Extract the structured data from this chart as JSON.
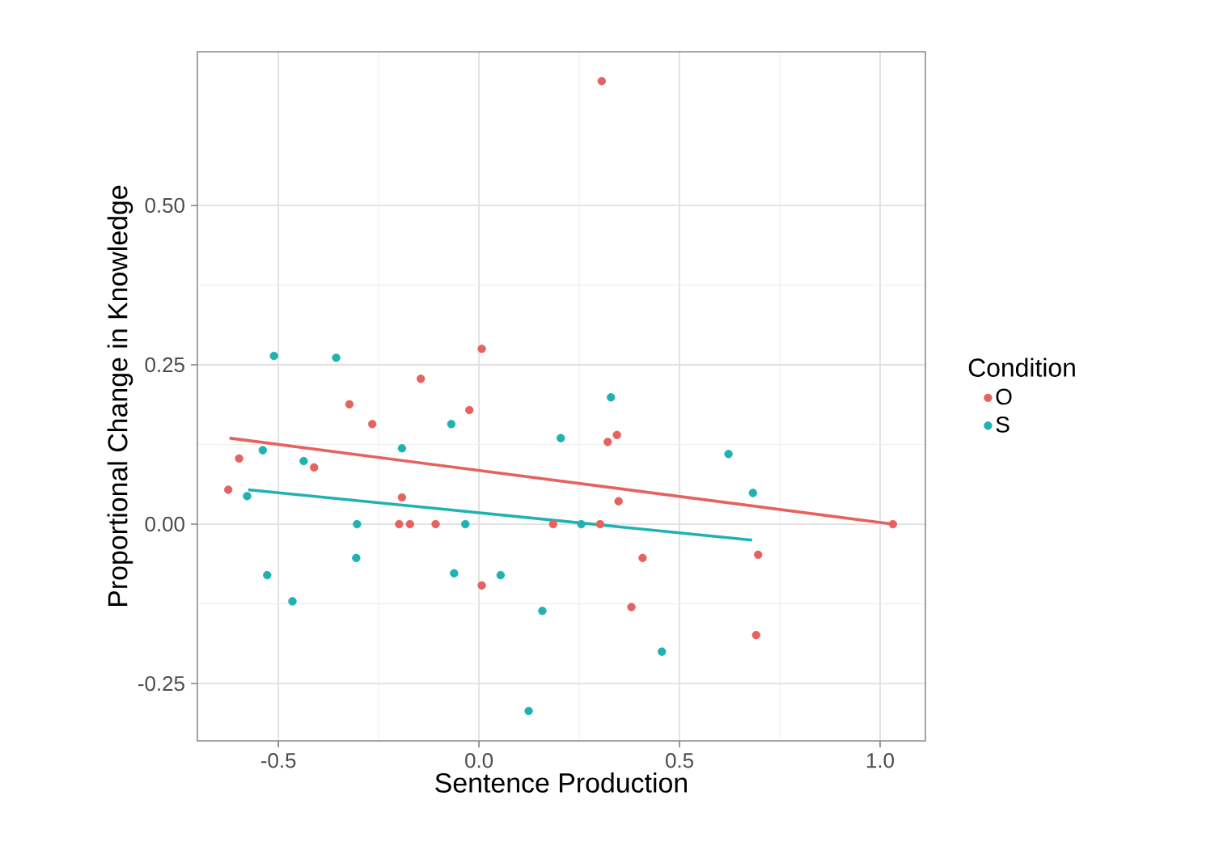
{
  "chart_data": {
    "type": "scatter",
    "xlabel": "Sentence Production",
    "ylabel": "Proportional Change in Knowledge",
    "legend_title": "Condition",
    "xlim": [
      -0.702,
      1.113
    ],
    "ylim": [
      -0.34,
      0.741
    ],
    "xticks": [
      {
        "value": -0.5,
        "label": "-0.5"
      },
      {
        "value": 0,
        "label": "0.0"
      },
      {
        "value": 0.5,
        "label": "0.5"
      },
      {
        "value": 1,
        "label": "1.0"
      }
    ],
    "yticks": [
      {
        "value": -0.25,
        "label": "-0.25"
      },
      {
        "value": 0,
        "label": "0.00"
      },
      {
        "value": 0.25,
        "label": "0.25"
      },
      {
        "value": 0.5,
        "label": "0.50"
      }
    ],
    "grid": true,
    "legend": "right",
    "series": [
      {
        "name": "O",
        "marker": "circle",
        "color": "#e5635f",
        "x": [
          -0.625,
          -0.598,
          -0.411,
          -0.323,
          -0.266,
          -0.145,
          -0.024,
          -0.192,
          -0.199,
          -0.172,
          -0.108,
          0.007,
          0.185,
          0.007,
          0.306,
          0.321,
          0.344,
          0.348,
          0.408,
          0.302,
          0.38,
          0.696,
          0.691,
          1.032
        ],
        "values": [
          0.054,
          0.103,
          0.089,
          0.188,
          0.157,
          0.228,
          0.179,
          0.042,
          0,
          0,
          0,
          -0.096,
          0,
          0.275,
          0.695,
          0.129,
          0.14,
          0.036,
          -0.053,
          0,
          -0.13,
          -0.048,
          -0.174,
          0
        ]
      },
      {
        "name": "S",
        "marker": "circle",
        "color": "#20b2b2",
        "x": [
          -0.511,
          -0.356,
          -0.539,
          -0.578,
          -0.437,
          -0.528,
          -0.465,
          -0.304,
          -0.306,
          -0.192,
          -0.069,
          -0.034,
          -0.062,
          0.054,
          0.158,
          0.124,
          0.204,
          0.329,
          0.255,
          0.622,
          0.683,
          0.456
        ],
        "values": [
          0.264,
          0.261,
          0.116,
          0.044,
          0.099,
          -0.08,
          -0.121,
          0,
          -0.053,
          0.119,
          0.157,
          0,
          -0.077,
          -0.08,
          -0.136,
          -0.293,
          0.135,
          0.199,
          0,
          0.11,
          0.049,
          -0.2
        ]
      },
      {
        "type": "line",
        "marker": "none",
        "color": "#e5635f",
        "x": [
          -0.622,
          1.032
        ],
        "values": [
          0.135,
          0
        ]
      },
      {
        "type": "line",
        "marker": "none",
        "color": "#20b2b2",
        "x": [
          -0.575,
          0.681
        ],
        "values": [
          0.054,
          -0.025
        ]
      }
    ]
  }
}
